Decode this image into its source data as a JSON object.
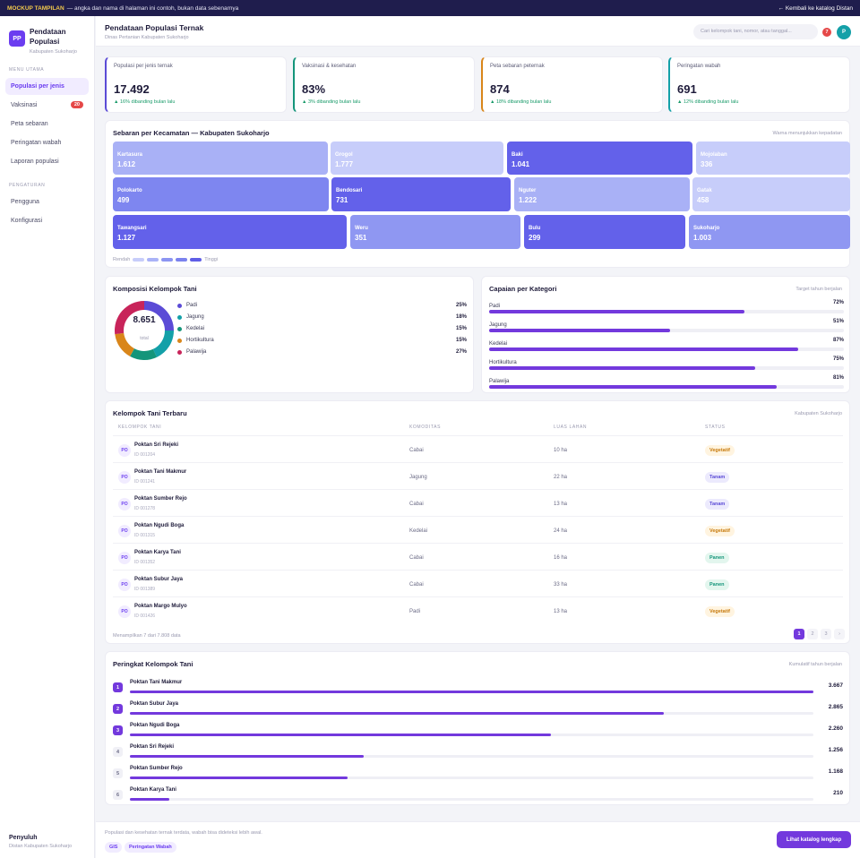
{
  "banner": {
    "tag": "MOCKUP TAMPILAN",
    "text": "— angka dan nama di halaman ini contoh, bukan data sebenarnya",
    "back": "← Kembali ke katalog Distan"
  },
  "sidebar": {
    "logo": "PP",
    "title": "Pendataan Populasi",
    "subtitle": "Kabupaten Sukoharjo",
    "section_main": "MENU UTAMA",
    "items": [
      {
        "label": "Populasi per jenis"
      },
      {
        "label": "Vaksinasi",
        "badge": "20"
      },
      {
        "label": "Peta sebaran"
      },
      {
        "label": "Peringatan wabah"
      },
      {
        "label": "Laporan populasi"
      }
    ],
    "section_settings": "PENGATURAN",
    "settings": [
      {
        "label": "Pengguna"
      },
      {
        "label": "Konfigurasi"
      }
    ],
    "user_name": "Penyuluh",
    "user_org": "Distan Kabupaten Sukoharjo"
  },
  "header": {
    "title": "Pendataan Populasi Ternak",
    "subtitle": "Dinas Pertanian Kabupaten Sukoharjo",
    "search_placeholder": "Cari kelompok tani, nomor, atau tanggal...",
    "notif_count": "7",
    "avatar": "P"
  },
  "kpis": [
    {
      "label": "Populasi per jenis ternak",
      "value": "17.492",
      "delta": "▲ 16% dibanding bulan lalu",
      "color": "#5b4bd6"
    },
    {
      "label": "Vaksinasi & kesehatan",
      "value": "83%",
      "delta": "▲ 3% dibanding bulan lalu",
      "color": "#14957a"
    },
    {
      "label": "Peta sebaran peternak",
      "value": "874",
      "delta": "▲ 18% dibanding bulan lalu",
      "color": "#d9861a"
    },
    {
      "label": "Peringatan wabah",
      "value": "691",
      "delta": "▲ 12% dibanding bulan lalu",
      "color": "#13a0a8"
    }
  ],
  "treemap": {
    "title": "Sebaran per Kecamatan — Kabupaten Sukoharjo",
    "note": "Warna menunjukkan kepadatan",
    "legend_low": "Rendah",
    "legend_high": "Tinggi",
    "scale_colors": [
      "#c7cdfa",
      "#aab3f7",
      "#8c95f2",
      "#7b82ee",
      "#5f5ee6"
    ],
    "tiles": [
      {
        "name": "Kartasura",
        "value": "1.612",
        "color": "#a9b1f6"
      },
      {
        "name": "Grogol",
        "value": "1.777",
        "color": "#c7cdfa"
      },
      {
        "name": "Baki",
        "value": "1.041",
        "color": "#6361ea"
      },
      {
        "name": "Mojolaban",
        "value": "336",
        "color": "#c7cdfa"
      },
      {
        "name": "Polokarto",
        "value": "499",
        "color": "#7e86f0"
      },
      {
        "name": "Bendosari",
        "value": "731",
        "color": "#6361ea"
      },
      {
        "name": "Nguter",
        "value": "1.222",
        "color": "#a9b1f6"
      },
      {
        "name": "Gatak",
        "value": "458",
        "color": "#c7cdfa"
      },
      {
        "name": "Tawangsari",
        "value": "1.127",
        "color": "#6361ea"
      },
      {
        "name": "Weru",
        "value": "351",
        "color": "#8f97f2"
      },
      {
        "name": "Bulu",
        "value": "299",
        "color": "#6361ea"
      },
      {
        "name": "Sukoharjo",
        "value": "1.003",
        "color": "#8f97f2"
      }
    ]
  },
  "composition": {
    "title": "Komposisi Kelompok Tani",
    "total": "8.651",
    "total_label": "total",
    "chart_data": {
      "type": "pie",
      "categories": [
        "Padi",
        "Jagung",
        "Kedelai",
        "Hortikultura",
        "Palawija"
      ],
      "values": [
        25,
        18,
        15,
        15,
        27
      ],
      "colors": [
        "#5b4bd6",
        "#13a0a8",
        "#14957a",
        "#d9861a",
        "#c8245a"
      ]
    }
  },
  "achievement": {
    "title": "Capaian per Kategori",
    "note": "Target tahun berjalan",
    "chart_data": {
      "type": "bar",
      "categories": [
        "Padi",
        "Jagung",
        "Kedelai",
        "Hortikultura",
        "Palawija"
      ],
      "values": [
        72,
        51,
        87,
        75,
        81
      ],
      "ylim": [
        0,
        100
      ]
    }
  },
  "groups": {
    "title": "Kelompok Tani Terbaru",
    "note": "Kabupaten Sukoharjo",
    "columns": [
      "KELOMPOK TANI",
      "KOMODITAS",
      "LUAS LAHAN",
      "STATUS"
    ],
    "rows": [
      {
        "initials": "PO",
        "name": "Poktan Sri Rejeki",
        "id": "ID 001204",
        "commodity": "Cabai",
        "area": "10 ha",
        "status": "Vegetatif"
      },
      {
        "initials": "PO",
        "name": "Poktan Tani Makmur",
        "id": "ID 001241",
        "commodity": "Jagung",
        "area": "22 ha",
        "status": "Tanam"
      },
      {
        "initials": "PO",
        "name": "Poktan Sumber Rejo",
        "id": "ID 001278",
        "commodity": "Cabai",
        "area": "13 ha",
        "status": "Tanam"
      },
      {
        "initials": "PO",
        "name": "Poktan Ngudi Boga",
        "id": "ID 001315",
        "commodity": "Kedelai",
        "area": "24 ha",
        "status": "Vegetatif"
      },
      {
        "initials": "PO",
        "name": "Poktan Karya Tani",
        "id": "ID 001352",
        "commodity": "Cabai",
        "area": "16 ha",
        "status": "Panen"
      },
      {
        "initials": "PO",
        "name": "Poktan Subur Jaya",
        "id": "ID 001389",
        "commodity": "Cabai",
        "area": "33 ha",
        "status": "Panen"
      },
      {
        "initials": "PO",
        "name": "Poktan Margo Mulyo",
        "id": "ID 001426",
        "commodity": "Padi",
        "area": "13 ha",
        "status": "Vegetatif"
      }
    ],
    "status_colors": {
      "Vegetatif": [
        "#fff4e0",
        "#c77a0c"
      ],
      "Tanam": [
        "#eceafd",
        "#5b4bd6"
      ],
      "Panen": [
        "#e3f6ee",
        "#14957a"
      ]
    },
    "pagination_info": "Menampilkan 7 dari 7.808 data",
    "pages": [
      "1",
      "2",
      "3",
      "›"
    ]
  },
  "ranking": {
    "title": "Peringkat Kelompok Tani",
    "note": "Kumulatif tahun berjalan",
    "chart_data": {
      "type": "bar",
      "categories": [
        "Poktan Tani Makmur",
        "Poktan Subur Jaya",
        "Poktan Ngudi Boga",
        "Poktan Sri Rejeki",
        "Poktan Sumber Rejo",
        "Poktan Karya Tani"
      ],
      "values": [
        3667,
        2865,
        2260,
        1256,
        1168,
        210
      ],
      "labels": [
        "3.667",
        "2.865",
        "2.260",
        "1.256",
        "1.168",
        "210"
      ],
      "ranks": [
        "1",
        "2",
        "3",
        "4",
        "5",
        "6"
      ]
    }
  },
  "footer": {
    "text": "Populasi dan kesehatan ternak terdata, wabah bisa dideteksi lebih awal.",
    "chips": [
      "GIS",
      "Peringatan Wabah"
    ],
    "cta": "Lihat katalog lengkap"
  }
}
